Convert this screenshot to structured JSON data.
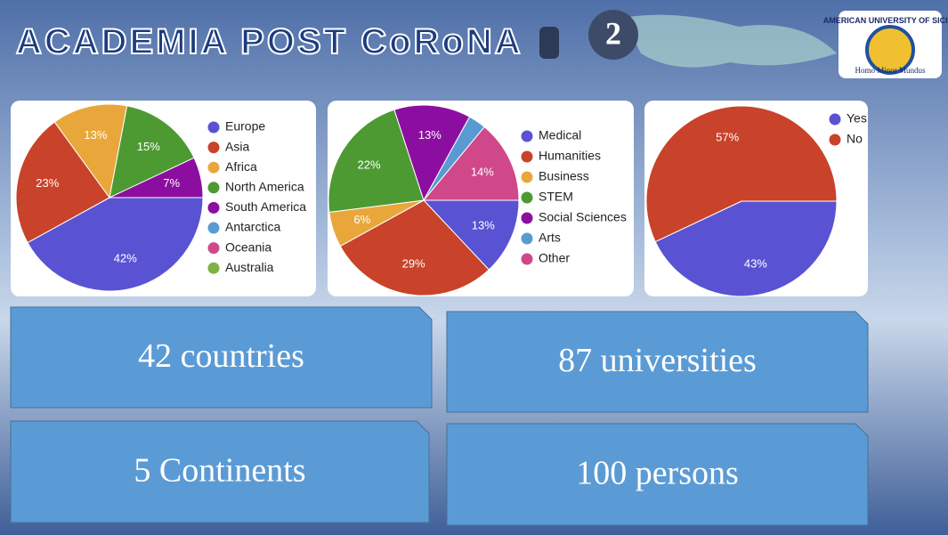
{
  "header": {
    "title": "ACADEMIA POST CoRoNA",
    "badge": "2",
    "logo_name": "AMERICAN UNIVERSITY OF SICILY",
    "logo_motto": "Homo Minor Mundus"
  },
  "chart_data": [
    {
      "type": "pie",
      "categories": [
        "Europe",
        "Asia",
        "Africa",
        "North America",
        "South America",
        "Antarctica",
        "Oceania",
        "Australia"
      ],
      "values": [
        42,
        23,
        13,
        15,
        7,
        0,
        0,
        0
      ],
      "value_labels": [
        "42%",
        "23%",
        "13%",
        "15%",
        "7%",
        null,
        null,
        null
      ],
      "colors": [
        "#5953d3",
        "#c8432a",
        "#e9a73b",
        "#4d9a32",
        "#8c0ea0",
        "#5a9ad3",
        "#d0488a",
        "#7cb342"
      ]
    },
    {
      "type": "pie",
      "categories": [
        "Medical",
        "Humanities",
        "Business",
        "STEM",
        "Social Sciences",
        "Arts",
        "Other"
      ],
      "values": [
        13,
        29,
        6,
        22,
        13,
        3,
        14
      ],
      "value_labels": [
        "13%",
        "29%",
        "6%",
        "22%",
        "13%",
        null,
        "14%"
      ],
      "colors": [
        "#5953d3",
        "#c8432a",
        "#e9a73b",
        "#4d9a32",
        "#8c0ea0",
        "#5a9ad3",
        "#d0488a"
      ]
    },
    {
      "type": "pie",
      "categories": [
        "Yes",
        "No"
      ],
      "values": [
        43,
        57
      ],
      "value_labels": [
        "43%",
        "57%"
      ],
      "colors": [
        "#5953d3",
        "#c8432a"
      ]
    }
  ],
  "boxes": [
    "42 countries",
    "87 universities",
    "5 Continents",
    "100 persons"
  ]
}
